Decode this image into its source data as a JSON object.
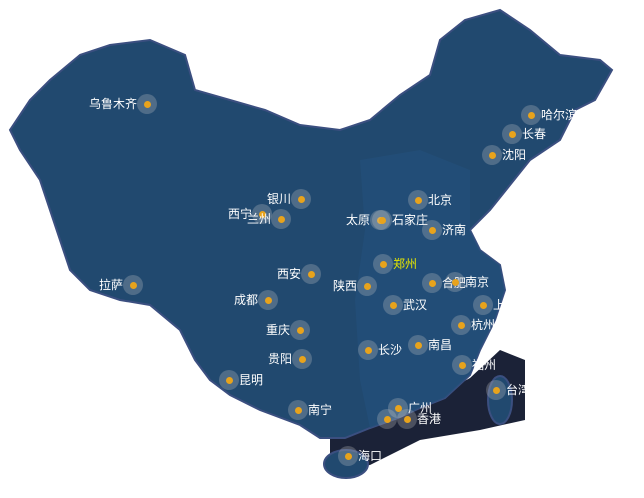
{
  "colors": {
    "land": "#21496f",
    "sea": "#1b2237",
    "marker": "#e8a31c",
    "label": "#ffffff",
    "highlight_label": "#e6e600"
  },
  "cities": [
    {
      "name": "乌鲁木齐",
      "side": "l"
    },
    {
      "name": "哈尔滨",
      "side": "r"
    },
    {
      "name": "长春",
      "side": "r"
    },
    {
      "name": "沈阳",
      "side": "r"
    },
    {
      "name": "银川",
      "side": "l"
    },
    {
      "name": "北京",
      "side": "r"
    },
    {
      "name": "西宁",
      "side": "l"
    },
    {
      "name": "兰州",
      "side": "l"
    },
    {
      "name": "太原",
      "side": "l"
    },
    {
      "name": "石家庄",
      "side": "r"
    },
    {
      "name": "济南",
      "side": "r"
    },
    {
      "name": "郑州",
      "side": "r",
      "highlight": true
    },
    {
      "name": "西安",
      "side": "l"
    },
    {
      "name": "陕西",
      "side": "l"
    },
    {
      "name": "合肥",
      "side": "r"
    },
    {
      "name": "南京",
      "side": "r"
    },
    {
      "name": "拉萨",
      "side": "l"
    },
    {
      "name": "成都",
      "side": "l"
    },
    {
      "name": "武汉",
      "side": "r"
    },
    {
      "name": "上海",
      "side": "r"
    },
    {
      "name": "杭州",
      "side": "r"
    },
    {
      "name": "重庆",
      "side": "l"
    },
    {
      "name": "长沙",
      "side": "r"
    },
    {
      "name": "南昌",
      "side": "r"
    },
    {
      "name": "贵阳",
      "side": "l"
    },
    {
      "name": "福州",
      "side": "r"
    },
    {
      "name": "昆明",
      "side": "r"
    },
    {
      "name": "台湾",
      "side": "r"
    },
    {
      "name": "南宁",
      "side": "r"
    },
    {
      "name": "广州",
      "side": "r"
    },
    {
      "name": "",
      "side": "r"
    },
    {
      "name": "香港",
      "side": "r"
    },
    {
      "name": "海口",
      "side": "r"
    }
  ]
}
